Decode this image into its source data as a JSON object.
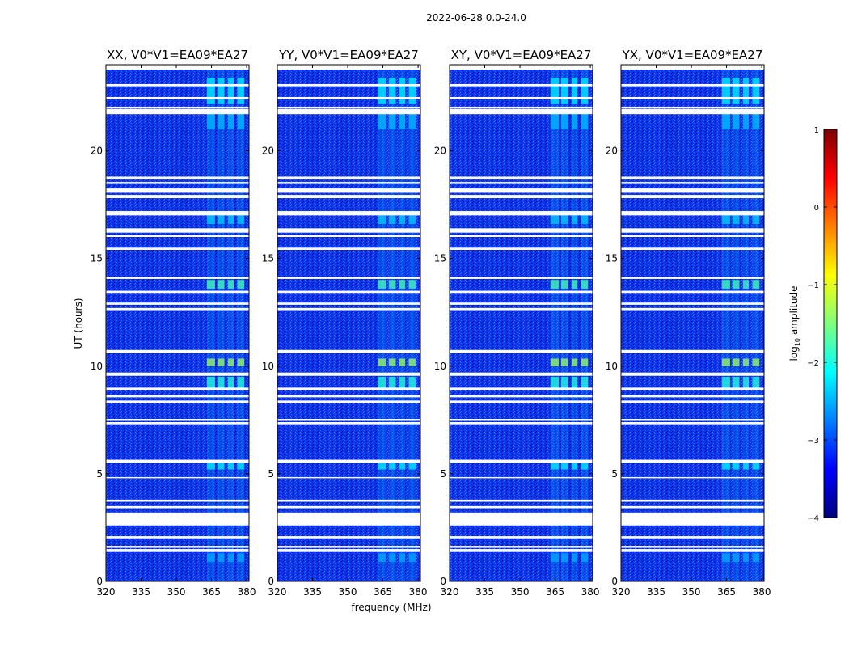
{
  "figure": {
    "suptitle": "2022-06-28 0.0-24.0",
    "xlabel": "frequency (MHz)",
    "ylabel": "UT (hours)"
  },
  "colorbar": {
    "label_prefix": "log",
    "label_sub": "10",
    "label_suffix": " amplitude",
    "range": [
      -4,
      1
    ],
    "ticks": [
      {
        "value": -4,
        "label": "−4"
      },
      {
        "value": -3,
        "label": "−3"
      },
      {
        "value": -2,
        "label": "−2"
      },
      {
        "value": -1,
        "label": "−1"
      },
      {
        "value": 0,
        "label": "0"
      },
      {
        "value": 1,
        "label": "1"
      }
    ],
    "colormap": [
      "#00007f",
      "#0000ff",
      "#007fff",
      "#00ffff",
      "#7fff7f",
      "#ffff00",
      "#ff7f00",
      "#ff0000",
      "#7f0000"
    ]
  },
  "chart_data": {
    "type": "heatmap",
    "xlim": [
      320,
      381
    ],
    "ylim": [
      0,
      24
    ],
    "x_ticks": [
      {
        "value": 320,
        "label": "320"
      },
      {
        "value": 335,
        "label": "335"
      },
      {
        "value": 350,
        "label": "350"
      },
      {
        "value": 365,
        "label": "365"
      },
      {
        "value": 380,
        "label": "380"
      }
    ],
    "y_ticks": [
      {
        "value": 0,
        "label": "0"
      },
      {
        "value": 5,
        "label": "5"
      },
      {
        "value": 10,
        "label": "10"
      },
      {
        "value": 15,
        "label": "15"
      },
      {
        "value": 20,
        "label": "20"
      }
    ],
    "background_log_amplitude": -3.2,
    "panels": [
      {
        "title": "XX, V0*V1=EA09*EA27"
      },
      {
        "title": "YY, V0*V1=EA09*EA27"
      },
      {
        "title": "XY, V0*V1=EA09*EA27"
      },
      {
        "title": "YX, V0*V1=EA09*EA27"
      }
    ],
    "flagged_time_ranges_hours": [
      [
        23.0,
        23.1
      ],
      [
        22.4,
        22.5
      ],
      [
        22.0,
        22.05
      ],
      [
        21.7,
        21.95
      ],
      [
        18.7,
        18.8
      ],
      [
        18.5,
        18.55
      ],
      [
        18.05,
        18.25
      ],
      [
        17.8,
        17.95
      ],
      [
        17.0,
        17.2
      ],
      [
        16.2,
        16.4
      ],
      [
        16.0,
        16.1
      ],
      [
        15.4,
        15.5
      ],
      [
        14.05,
        14.15
      ],
      [
        13.4,
        13.5
      ],
      [
        12.85,
        12.95
      ],
      [
        12.6,
        12.7
      ],
      [
        10.6,
        10.75
      ],
      [
        9.55,
        9.7
      ],
      [
        8.9,
        9.0
      ],
      [
        8.55,
        8.65
      ],
      [
        8.3,
        8.4
      ],
      [
        7.5,
        7.55
      ],
      [
        7.3,
        7.4
      ],
      [
        5.5,
        5.65
      ],
      [
        4.8,
        4.85
      ],
      [
        3.7,
        3.8
      ],
      [
        3.4,
        3.5
      ],
      [
        2.6,
        3.2
      ],
      [
        2.0,
        2.1
      ],
      [
        1.6,
        1.65
      ],
      [
        1.4,
        1.5
      ]
    ],
    "bright_channel_ranges_mhz": [
      [
        363.0,
        366.5
      ],
      [
        367.5,
        370.5
      ],
      [
        372.0,
        374.5
      ],
      [
        376.0,
        379.0
      ]
    ],
    "bright_time_ranges_hours": [
      {
        "range": [
          22.2,
          23.4
        ],
        "log_amplitude": -2.2
      },
      {
        "range": [
          21.0,
          21.8
        ],
        "log_amplitude": -2.5
      },
      {
        "range": [
          16.6,
          17.0
        ],
        "log_amplitude": -2.4
      },
      {
        "range": [
          13.6,
          14.0
        ],
        "log_amplitude": -1.7
      },
      {
        "range": [
          10.0,
          10.35
        ],
        "log_amplitude": -1.2
      },
      {
        "range": [
          8.9,
          9.5
        ],
        "log_amplitude": -1.9
      },
      {
        "range": [
          5.2,
          5.5
        ],
        "log_amplitude": -2.2
      },
      {
        "range": [
          0.9,
          1.3
        ],
        "log_amplitude": -2.6
      }
    ]
  }
}
